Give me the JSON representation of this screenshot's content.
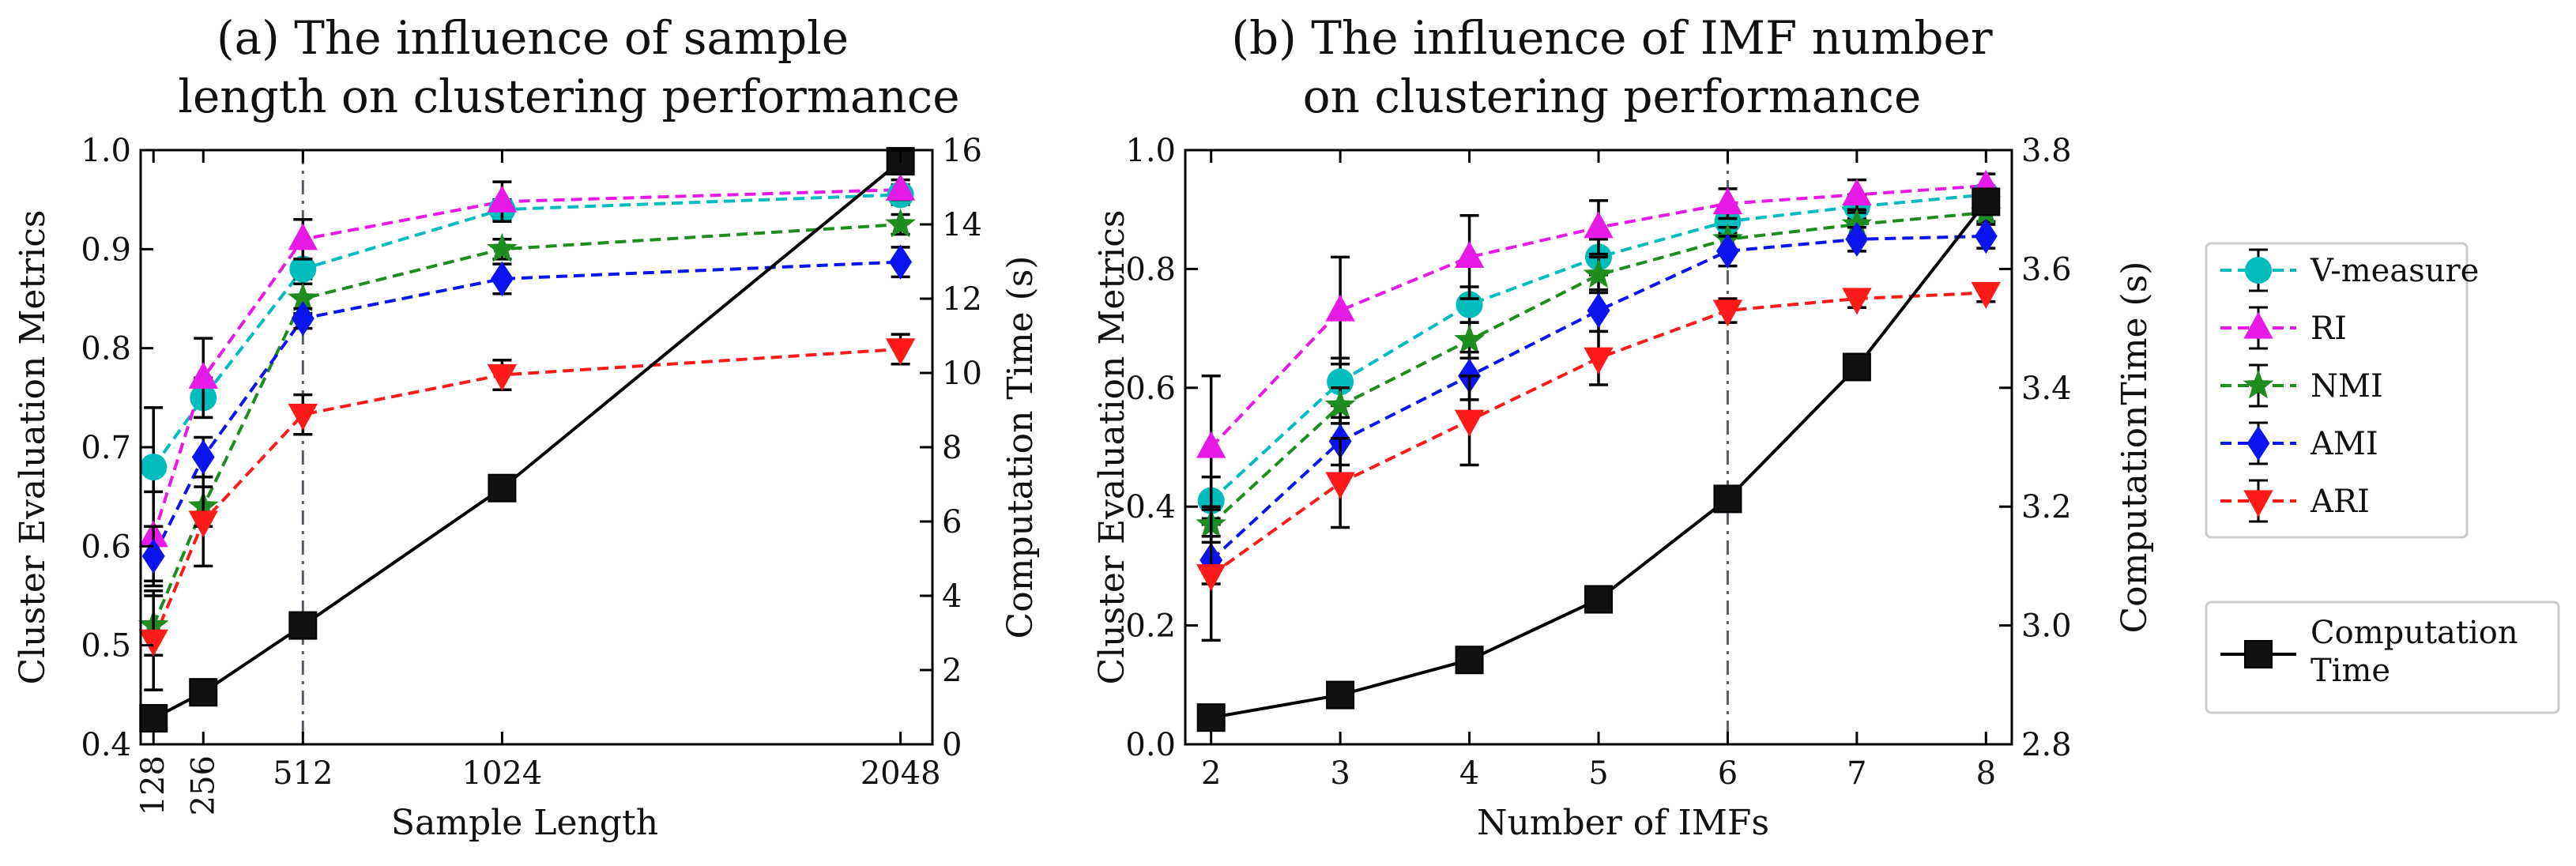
{
  "chart_data": [
    {
      "id": "a",
      "type": "line",
      "title": [
        "(a) The influence of sample",
        "length on clustering performance"
      ],
      "xlabel": "Sample Length",
      "ylabel": "Cluster Evaluation Metrics",
      "y2label": "Computation Time (s)",
      "x": [
        128,
        256,
        512,
        1024,
        2048
      ],
      "x_tick_labels": [
        "128",
        "256",
        "512",
        "1024",
        "2048"
      ],
      "xlim": [
        95,
        2130
      ],
      "ylim": [
        0.4,
        1.0
      ],
      "yticks": [
        0.4,
        0.5,
        0.6,
        0.7,
        0.8,
        0.9,
        1.0
      ],
      "y2lim": [
        0,
        16
      ],
      "y2ticks": [
        0,
        2,
        4,
        6,
        8,
        10,
        12,
        14,
        16
      ],
      "vline_x": 512,
      "series": [
        {
          "name": "V-measure",
          "values": [
            0.68,
            0.75,
            0.88,
            0.94,
            0.955
          ],
          "errors": [
            0.06,
            0.02,
            0.01,
            0.01,
            0.01
          ]
        },
        {
          "name": "RI",
          "values": [
            0.61,
            0.77,
            0.91,
            0.948,
            0.96
          ],
          "errors": [
            0.045,
            0.04,
            0.02,
            0.02,
            0.01
          ]
        },
        {
          "name": "NMI",
          "values": [
            0.52,
            0.64,
            0.85,
            0.9,
            0.925
          ],
          "errors": [
            0.03,
            0.02,
            0.015,
            0.01,
            0.01
          ]
        },
        {
          "name": "AMI",
          "values": [
            0.59,
            0.69,
            0.83,
            0.87,
            0.887
          ],
          "errors": [
            0.03,
            0.02,
            0.01,
            0.015,
            0.015
          ]
        },
        {
          "name": "ARI",
          "values": [
            0.505,
            0.625,
            0.733,
            0.773,
            0.799
          ],
          "errors": [
            0.05,
            0.045,
            0.02,
            0.015,
            0.015
          ]
        }
      ],
      "time_series": {
        "name": "Computation Time",
        "values": [
          0.7,
          1.4,
          3.2,
          6.9,
          15.7
        ]
      }
    },
    {
      "id": "b",
      "type": "line",
      "title": [
        "(b) The influence of IMF number",
        "on clustering performance"
      ],
      "xlabel": "Number of IMFs",
      "ylabel": "Cluster Evaluation Metrics",
      "y2label": "ComputationTime (s)",
      "x": [
        2,
        3,
        4,
        5,
        6,
        7,
        8
      ],
      "x_tick_labels": [
        "2",
        "3",
        "4",
        "5",
        "6",
        "7",
        "8"
      ],
      "xlim": [
        1.8,
        8.2
      ],
      "ylim": [
        0.0,
        1.0
      ],
      "yticks": [
        0.0,
        0.2,
        0.4,
        0.6,
        0.8,
        1.0
      ],
      "y2lim": [
        2.8,
        3.8
      ],
      "y2ticks": [
        2.8,
        3.0,
        3.2,
        3.4,
        3.6,
        3.8
      ],
      "vline_x": 6,
      "series": [
        {
          "name": "V-measure",
          "values": [
            0.41,
            0.61,
            0.74,
            0.82,
            0.88,
            0.905,
            0.925
          ],
          "errors": [
            0.04,
            0.04,
            0.03,
            0.03,
            0.02,
            0.02,
            0.015
          ]
        },
        {
          "name": "RI",
          "values": [
            0.5,
            0.73,
            0.82,
            0.87,
            0.91,
            0.925,
            0.94
          ],
          "errors": [
            0.12,
            0.09,
            0.07,
            0.045,
            0.025,
            0.025,
            0.02
          ]
        },
        {
          "name": "NMI",
          "values": [
            0.37,
            0.57,
            0.68,
            0.79,
            0.85,
            0.875,
            0.895
          ],
          "errors": [
            0.03,
            0.03,
            0.03,
            0.03,
            0.02,
            0.02,
            0.015
          ]
        },
        {
          "name": "AMI",
          "values": [
            0.31,
            0.51,
            0.62,
            0.73,
            0.83,
            0.85,
            0.855
          ],
          "errors": [
            0.04,
            0.04,
            0.04,
            0.035,
            0.025,
            0.02,
            0.02
          ]
        },
        {
          "name": "ARI",
          "values": [
            0.285,
            0.44,
            0.545,
            0.65,
            0.73,
            0.75,
            0.76
          ],
          "errors": [
            0.11,
            0.075,
            0.075,
            0.045,
            0.02,
            0.015,
            0.015
          ]
        }
      ],
      "time_series": {
        "name": "Computation Time",
        "values": [
          2.845,
          2.883,
          2.942,
          3.044,
          3.213,
          3.435,
          3.713
        ]
      }
    }
  ],
  "legend": {
    "placement": "right",
    "metrics": [
      {
        "label": "V-measure",
        "color": "#00bcbc",
        "marker": "circle"
      },
      {
        "label": "RI",
        "color": "#e619e6",
        "marker": "triangle-up"
      },
      {
        "label": "NMI",
        "color": "#1f8c1f",
        "marker": "star"
      },
      {
        "label": "AMI",
        "color": "#0a14ee",
        "marker": "diamond"
      },
      {
        "label": "ARI",
        "color": "#ff1a1a",
        "marker": "triangle-down"
      }
    ],
    "time": {
      "label_lines": [
        "Computation",
        "Time"
      ],
      "color": "#000000",
      "marker": "square"
    }
  }
}
